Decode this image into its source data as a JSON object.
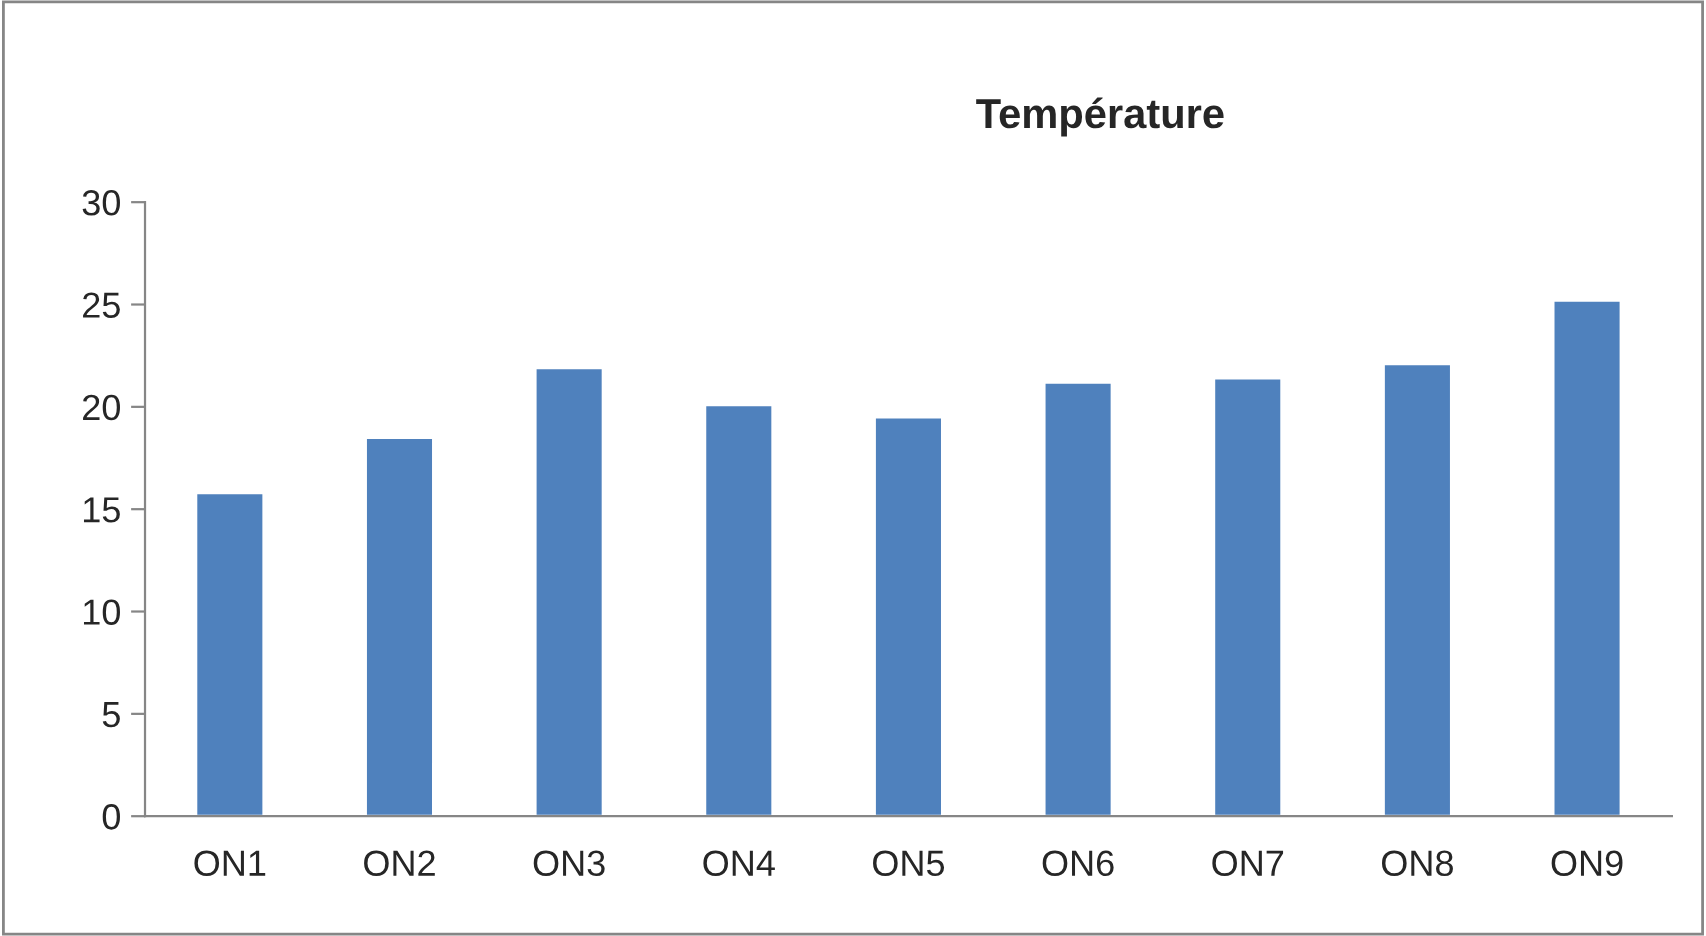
{
  "chart_data": {
    "type": "bar",
    "title": "Température",
    "categories": [
      "ON1",
      "ON2",
      "ON3",
      "ON4",
      "ON5",
      "ON6",
      "ON7",
      "ON8",
      "ON9"
    ],
    "values": [
      15.8,
      18.5,
      21.9,
      20.1,
      19.5,
      21.2,
      21.4,
      22.1,
      25.2
    ],
    "color": "#4f81bd",
    "ylim": [
      0,
      30
    ],
    "yticks": [
      0,
      5,
      10,
      15,
      20,
      25,
      30
    ],
    "grid": false
  }
}
